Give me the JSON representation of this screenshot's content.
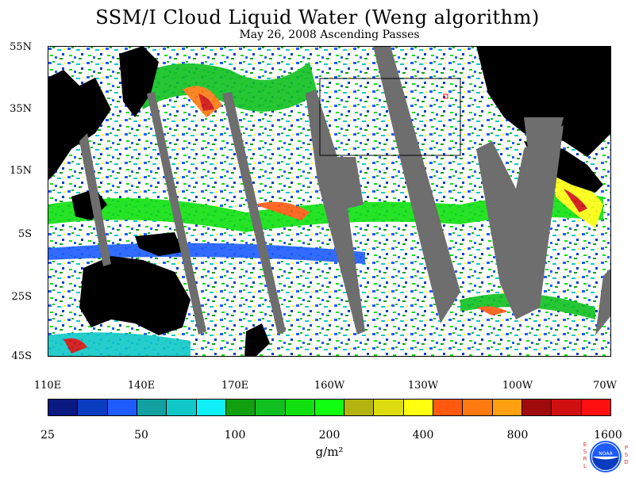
{
  "title": "SSM/I Cloud Liquid Water (Weng algorithm)",
  "subtitle": "May 26, 2008  Ascending Passes",
  "lat_labels": [
    "55N",
    "35N",
    "15N",
    "5S",
    "25S",
    "45S"
  ],
  "lon_labels": [
    "110E",
    "140E",
    "170E",
    "160W",
    "130W",
    "100W",
    "70W"
  ],
  "colorbar": {
    "colors": [
      "#0a1a80",
      "#0a3cc0",
      "#1e5cff",
      "#12a0a0",
      "#10c8c8",
      "#10f0f8",
      "#10a010",
      "#10c020",
      "#10e010",
      "#10ff10",
      "#b4b410",
      "#dcdc10",
      "#ffff10",
      "#ff5a10",
      "#ff7a10",
      "#ffa010",
      "#a00a0a",
      "#d01010",
      "#ff1010"
    ],
    "tick_labels": [
      "25",
      "50",
      "100",
      "200",
      "400",
      "800",
      "1600"
    ],
    "units": "g/m²"
  },
  "logo": {
    "left_letters": [
      "E",
      "S",
      "R",
      "L"
    ],
    "right_letters": [
      "P",
      "S",
      "D"
    ],
    "center_text": "NOAA"
  }
}
